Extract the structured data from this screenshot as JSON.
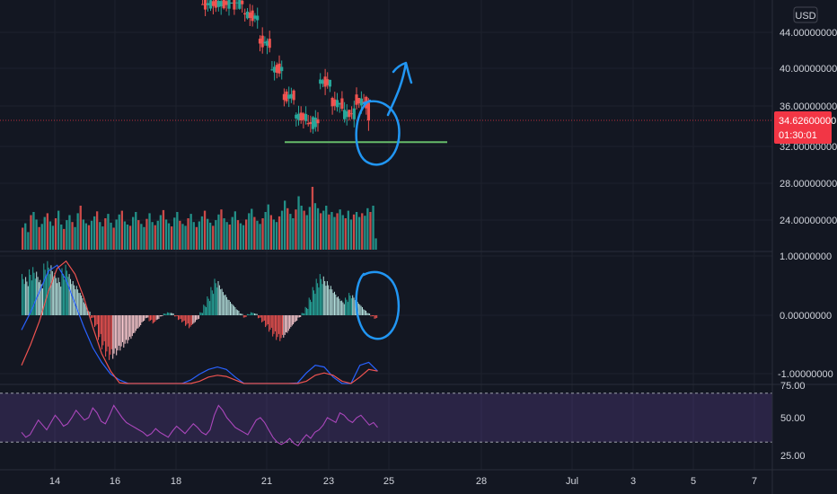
{
  "colors": {
    "background": "#131722",
    "grid": "#1e222d",
    "up": "#26a69a",
    "down": "#ef5350",
    "hist_up_strong": "#26a69a",
    "hist_up_weak": "#b2dfdb",
    "hist_down_strong": "#ef5350",
    "hist_down_weak": "#ffcdd2",
    "macd_line": "#2962ff",
    "signal_line": "#ff6d00",
    "rsi_line": "#9c27b0",
    "rsi_band": "#7e57c2",
    "drawing_blue": "#2196f3",
    "support_line": "#66bb6a",
    "price_line": "#f23645"
  },
  "price_axis": {
    "currency": "USD",
    "ticks": [
      "44.00000000",
      "40.00000000",
      "36.00000000",
      "32.00000000",
      "28.00000000",
      "24.00000000"
    ],
    "current_price": "34.62600000",
    "countdown": "01:30:01"
  },
  "macd_axis": {
    "ticks": [
      "1.00000000",
      "0.00000000",
      "-1.00000000"
    ]
  },
  "rsi_axis": {
    "ticks": [
      "75.00",
      "50.00",
      "25.00"
    ]
  },
  "time_axis": {
    "labels": [
      "14",
      "16",
      "18",
      "21",
      "23",
      "25",
      "28",
      "Jul",
      "3",
      "5",
      "7"
    ]
  },
  "chart_data": [
    {
      "type": "candlestick",
      "pane": "price",
      "ylim": [
        19.5,
        47.5
      ],
      "support_level": 32.3,
      "current_price": 34.626,
      "visible_ohlc_approx": [
        {
          "day": 18.9,
          "open": 47.5,
          "high": 48.5,
          "low": 46.6,
          "close": 47.0
        },
        {
          "day": 20.3,
          "open": 47.2,
          "high": 48.2,
          "low": 45.8,
          "close": 46.1
        },
        {
          "day": 20.8,
          "open": 45.6,
          "high": 46.2,
          "low": 42.8,
          "close": 43.2
        },
        {
          "day": 21.2,
          "open": 42.9,
          "high": 43.6,
          "low": 39.5,
          "close": 40.2
        },
        {
          "day": 21.6,
          "open": 40.3,
          "high": 41.0,
          "low": 36.5,
          "close": 37.2
        },
        {
          "day": 22.0,
          "open": 37.4,
          "high": 38.6,
          "low": 34.2,
          "close": 35.1
        },
        {
          "day": 22.4,
          "open": 35.0,
          "high": 37.8,
          "low": 32.2,
          "close": 34.0
        },
        {
          "day": 22.8,
          "open": 34.3,
          "high": 40.8,
          "low": 33.8,
          "close": 38.9
        },
        {
          "day": 23.2,
          "open": 38.7,
          "high": 40.0,
          "low": 35.8,
          "close": 36.6
        },
        {
          "day": 23.6,
          "open": 36.4,
          "high": 37.2,
          "low": 34.4,
          "close": 35.2
        },
        {
          "day": 24.0,
          "open": 35.3,
          "high": 37.8,
          "low": 34.5,
          "close": 36.9
        },
        {
          "day": 24.4,
          "open": 36.5,
          "high": 37.0,
          "low": 33.5,
          "close": 34.626
        }
      ]
    },
    {
      "type": "bar",
      "pane": "volume",
      "description_values": "relative volume per candle, 0-1",
      "x_range_days": [
        12.9,
        24.7
      ],
      "values": [
        0.35,
        0.42,
        0.28,
        0.55,
        0.6,
        0.48,
        0.36,
        0.41,
        0.52,
        0.58,
        0.45,
        0.38,
        0.5,
        0.62,
        0.4,
        0.33,
        0.47,
        0.55,
        0.44,
        0.36,
        0.58,
        0.7,
        0.48,
        0.42,
        0.39,
        0.46,
        0.53,
        0.61,
        0.44,
        0.37,
        0.5,
        0.57,
        0.43,
        0.35,
        0.48,
        0.56,
        0.62,
        0.45,
        0.4,
        0.38,
        0.52,
        0.6,
        0.47,
        0.41,
        0.36,
        0.49,
        0.58,
        0.44,
        0.39,
        0.46,
        0.55,
        0.63,
        0.48,
        0.42,
        0.37,
        0.51,
        0.6,
        0.46,
        0.41,
        0.38,
        0.5,
        0.57,
        0.44,
        0.36,
        0.45,
        0.53,
        0.62,
        0.49,
        0.43,
        0.38,
        0.47,
        0.56,
        0.64,
        0.5,
        0.44,
        0.4,
        0.52,
        0.61,
        0.47,
        0.42,
        0.39,
        0.48,
        0.58,
        0.65,
        0.52,
        0.46,
        0.41,
        0.5,
        0.6,
        0.72,
        0.55,
        0.48,
        0.44,
        0.53,
        0.62,
        0.78,
        0.66,
        0.57,
        0.5,
        0.64,
        0.85,
        0.7,
        0.62,
        0.55,
        0.68,
        1.0,
        0.74,
        0.66,
        0.58,
        0.62,
        0.7,
        0.56,
        0.6,
        0.52,
        0.58,
        0.64,
        0.55,
        0.5,
        0.62,
        0.48,
        0.56,
        0.6,
        0.52,
        0.58,
        0.54,
        0.66,
        0.6,
        0.7,
        0.18
      ]
    },
    {
      "type": "bar",
      "pane": "macd",
      "ylim": [
        -1.25,
        1.25
      ],
      "x_range_days": [
        12.9,
        24.7
      ],
      "histogram": [
        0.7,
        0.65,
        0.78,
        0.82,
        0.74,
        0.6,
        0.88,
        0.92,
        0.85,
        0.72,
        0.64,
        0.8,
        0.86,
        0.7,
        0.58,
        0.5,
        0.38,
        0.22,
        0.08,
        -0.05,
        -0.2,
        -0.42,
        -0.58,
        -0.7,
        -0.76,
        -0.74,
        -0.68,
        -0.6,
        -0.55,
        -0.48,
        -0.4,
        -0.3,
        -0.22,
        -0.12,
        -0.05,
        -0.1,
        -0.14,
        -0.08,
        -0.02,
        0.03,
        0.05,
        0.04,
        -0.02,
        -0.08,
        -0.12,
        -0.18,
        -0.22,
        -0.15,
        -0.08,
        0.05,
        0.18,
        0.32,
        0.48,
        0.62,
        0.58,
        0.45,
        0.35,
        0.26,
        0.18,
        0.1,
        0.03,
        -0.04,
        0.02,
        0.05,
        0.03,
        -0.05,
        -0.12,
        -0.2,
        -0.28,
        -0.36,
        -0.42,
        -0.44,
        -0.38,
        -0.3,
        -0.2,
        -0.12,
        -0.04,
        0.04,
        0.14,
        0.3,
        0.48,
        0.62,
        0.7,
        0.66,
        0.58,
        0.5,
        0.4,
        0.32,
        0.25,
        0.3,
        0.38,
        0.34,
        0.26,
        0.18,
        0.1,
        0.04,
        -0.02,
        -0.06
      ],
      "macd_line": [
        -0.25,
        0.05,
        0.4,
        0.75,
        0.85,
        0.6,
        0.2,
        -0.2,
        -0.55,
        -0.8,
        -1.0,
        -1.1,
        -1.2,
        -1.25,
        -1.25,
        -1.25,
        -1.25,
        -1.25,
        -1.2,
        -1.1,
        -1.0,
        -0.92,
        -0.88,
        -0.92,
        -1.05,
        -1.2,
        -1.25,
        -1.25,
        -1.25,
        -1.25,
        -1.25,
        -1.15,
        -0.98,
        -0.85,
        -0.88,
        -1.05,
        -1.2,
        -1.25,
        -0.85,
        -0.8,
        -0.95
      ],
      "signal_line": [
        -0.85,
        -0.5,
        -0.1,
        0.4,
        0.8,
        0.92,
        0.7,
        0.3,
        -0.2,
        -0.65,
        -0.95,
        -1.15,
        -1.25,
        -1.25,
        -1.25,
        -1.25,
        -1.25,
        -1.25,
        -1.25,
        -1.2,
        -1.12,
        -1.05,
        -1.02,
        -1.04,
        -1.1,
        -1.18,
        -1.25,
        -1.25,
        -1.25,
        -1.25,
        -1.25,
        -1.22,
        -1.12,
        -1.02,
        -0.98,
        -1.02,
        -1.12,
        -1.22,
        -1.05,
        -0.92,
        -0.95
      ]
    },
    {
      "type": "line",
      "pane": "rsi",
      "ylim": [
        18,
        78
      ],
      "upper_band": 70,
      "lower_band": 30,
      "x_range_days": [
        12.9,
        24.7
      ],
      "values": [
        38,
        34,
        36,
        42,
        48,
        44,
        40,
        46,
        52,
        48,
        43,
        45,
        50,
        56,
        52,
        48,
        50,
        58,
        54,
        47,
        45,
        52,
        60,
        55,
        50,
        46,
        44,
        42,
        40,
        38,
        35,
        37,
        41,
        38,
        36,
        34,
        39,
        43,
        40,
        37,
        41,
        45,
        42,
        38,
        36,
        40,
        52,
        60,
        56,
        50,
        46,
        42,
        40,
        38,
        36,
        42,
        48,
        50,
        46,
        40,
        34,
        30,
        28,
        30,
        33,
        29,
        27,
        32,
        36,
        33,
        38,
        40,
        44,
        50,
        48,
        46,
        54,
        52,
        48,
        46,
        50,
        52,
        48,
        44,
        46,
        42
      ],
      "ticks": [
        75,
        50,
        25
      ]
    }
  ]
}
